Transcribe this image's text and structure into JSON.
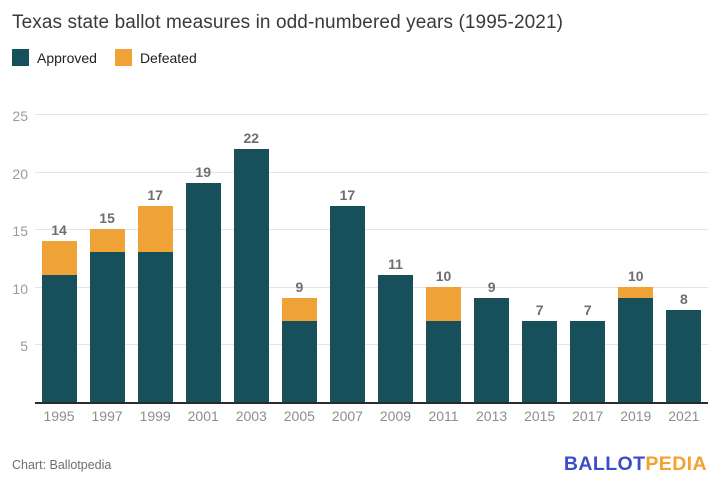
{
  "title": "Texas state ballot measures in odd-numbered years (1995-2021)",
  "legend": [
    {
      "label": "Approved",
      "color": "#17505a"
    },
    {
      "label": "Defeated",
      "color": "#efa236"
    }
  ],
  "chart_data": {
    "type": "bar",
    "stacked": true,
    "title": "Texas state ballot measures in odd-numbered years (1995-2021)",
    "categories": [
      "1995",
      "1997",
      "1999",
      "2001",
      "2003",
      "2005",
      "2007",
      "2009",
      "2011",
      "2013",
      "2015",
      "2017",
      "2019",
      "2021"
    ],
    "series": [
      {
        "name": "Approved",
        "color": "#17505a",
        "values": [
          11,
          13,
          13,
          19,
          22,
          7,
          17,
          11,
          7,
          9,
          7,
          7,
          9,
          8
        ]
      },
      {
        "name": "Defeated",
        "color": "#efa236",
        "values": [
          3,
          2,
          4,
          0,
          0,
          2,
          0,
          0,
          3,
          0,
          0,
          0,
          1,
          0
        ]
      }
    ],
    "totals": [
      14,
      15,
      17,
      19,
      22,
      9,
      17,
      11,
      10,
      9,
      7,
      7,
      10,
      8
    ],
    "yticks": [
      5,
      10,
      15,
      20,
      25
    ],
    "ylim": [
      0,
      25
    ],
    "grid": true,
    "legend_position": "top-left",
    "xlabel": "",
    "ylabel": ""
  },
  "footer": {
    "credit": "Chart: Ballotpedia",
    "logo": {
      "part1": "BALLOT",
      "part2": "PEDIA",
      "color1": "#3b4ec9",
      "color2": "#f2a230"
    }
  }
}
